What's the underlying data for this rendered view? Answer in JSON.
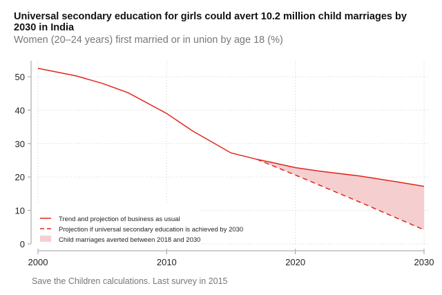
{
  "chart_data": {
    "type": "line",
    "title": "Universal secondary education for girls could avert 10.2 million child marriages by 2030 in India",
    "subtitle": "Women (20–24 years) first married or in union by age 18 (%)",
    "source": "Save the Children calculations. Last survey in 2015",
    "xlim": [
      2000,
      2030
    ],
    "ylim": [
      0,
      55
    ],
    "xticks": [
      "2000",
      "2010",
      "2020",
      "2030"
    ],
    "yticks": [
      "0",
      "10",
      "20",
      "30",
      "40",
      "50"
    ],
    "grid": true,
    "legend_position": "bottom-left",
    "series": [
      {
        "name": "Trend and projection of business as usual",
        "style": "solid",
        "color": "#e0251b",
        "x": [
          2000,
          2003,
          2005,
          2007,
          2010,
          2012,
          2015,
          2017,
          2018,
          2020,
          2022,
          2025,
          2028,
          2030
        ],
        "y": [
          52.5,
          50.2,
          48,
          45.2,
          39,
          33.8,
          27.2,
          25.3,
          24.5,
          22.8,
          21.7,
          20.3,
          18.5,
          17.2
        ]
      },
      {
        "name": "Projection if universal secondary education is achieved by 2030",
        "style": "dashed",
        "color": "#e0251b",
        "x": [
          2017,
          2020,
          2025,
          2030
        ],
        "y": [
          25.3,
          20.6,
          12.5,
          4.2
        ]
      }
    ],
    "area": {
      "name": "Child marriages averted between 2018 and 2030",
      "color": "#f5cfcf"
    }
  }
}
